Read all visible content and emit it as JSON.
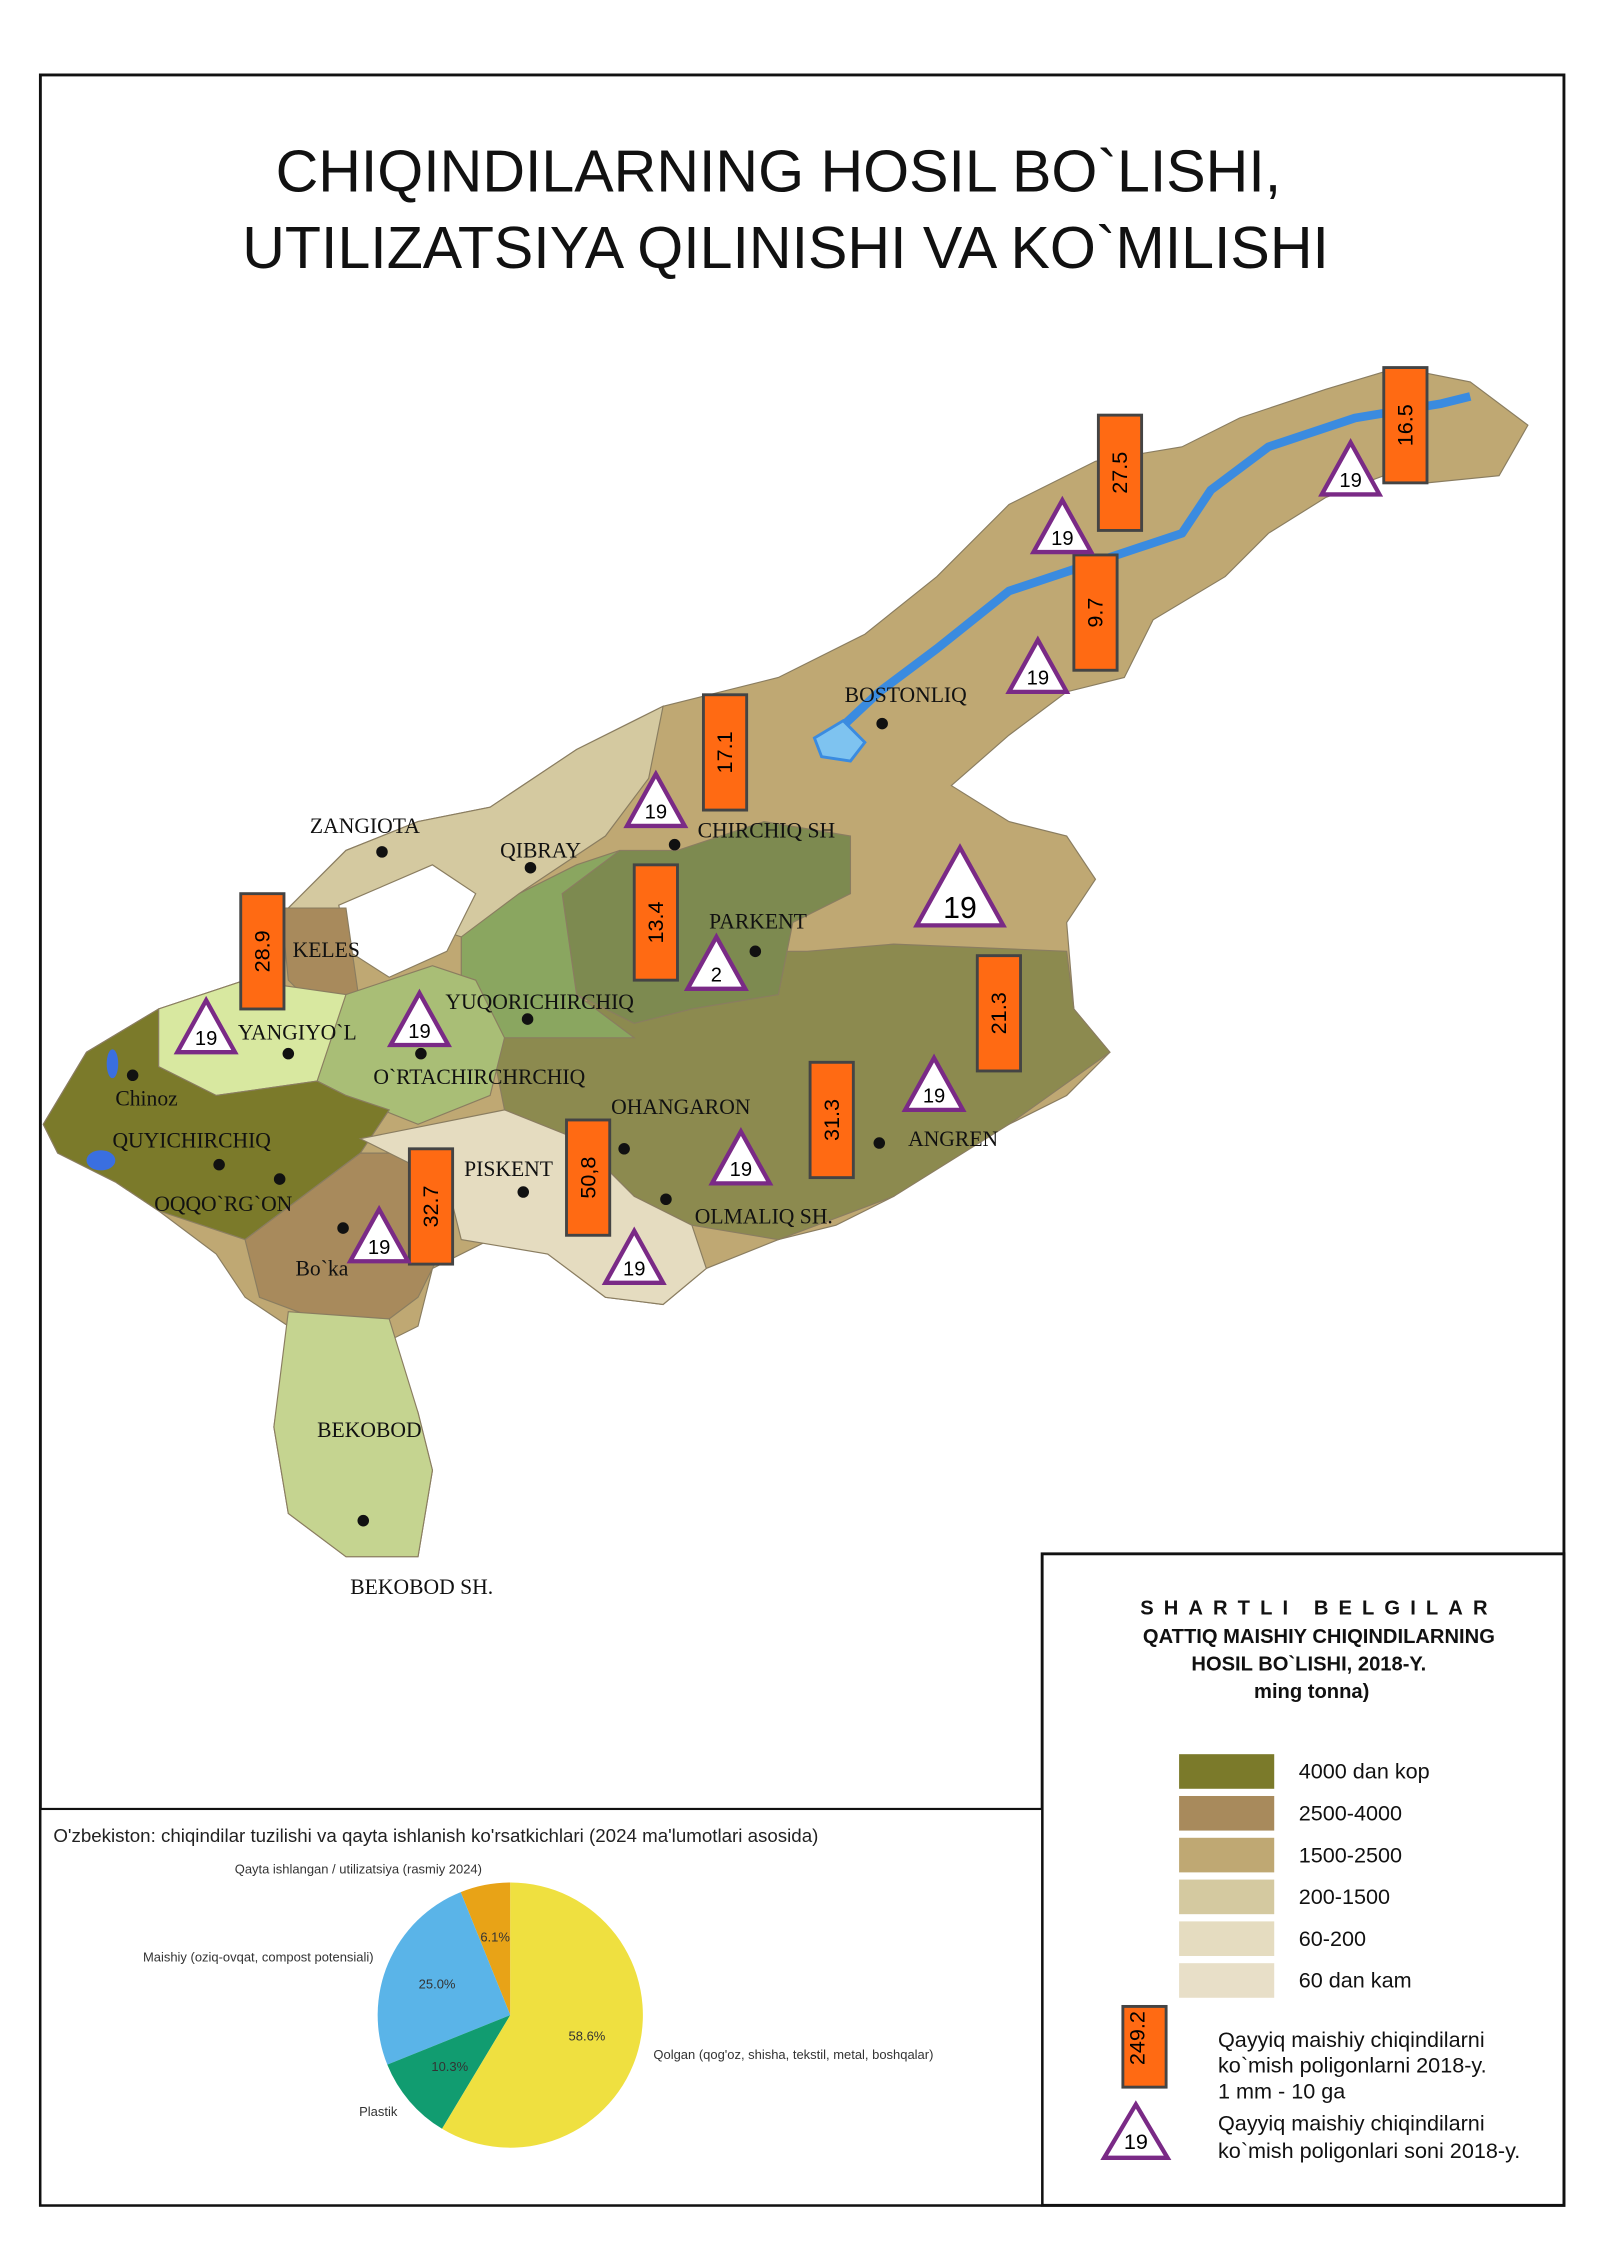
{
  "header": {
    "title_lines": [
      "CHIQINDILARNING HOSIL BO`LISHI,",
      "UTILIZATSIYA QILINISHI VA KO`MILISHI"
    ]
  },
  "map": {
    "places": [
      "ZANGIOTA",
      "QIBRAY",
      "CHIRCHIQ SH",
      "BOSTONLIQ",
      "PARKENT",
      "KELES",
      "YUQORICHIRCHIQ",
      "YANGIYO`L",
      "O`RTACHIRCHRCHIQ",
      "Chinoz",
      "QUYICHIRCHIQ",
      "OQQO`RG`ON",
      "Bo`ka",
      "PISKENT",
      "OHANGARON",
      "ANGREN",
      "OLMALIQ SH.",
      "BEKOBOD",
      "BEKOBOD SH."
    ],
    "boxes": [
      "16.5",
      "27.5",
      "9.7",
      "17.1",
      "13.4",
      "28.9",
      "21.3",
      "31.3",
      "50,8",
      "32.7"
    ],
    "triangles": [
      "19",
      "19",
      "19",
      "19",
      "19",
      "2",
      "19",
      "19",
      "19",
      "19",
      "19",
      "19"
    ]
  },
  "legend": {
    "title": "SHARTLI BELGILAR",
    "subtitle_lines": [
      "QATTIQ MAISHIY CHIQINDILARNING",
      "HOSIL BO`LISHI, 2018-Y.",
      "ming tonna)"
    ],
    "items": [
      {
        "label": "4000 dan kop",
        "color": "#7b7a2a"
      },
      {
        "label": "2500-4000",
        "color": "#a88a5c"
      },
      {
        "label": "1500-2500",
        "color": "#bfa873"
      },
      {
        "label": "200-1500",
        "color": "#d4c9a0"
      },
      {
        "label": "60-200",
        "color": "#e5dcc0"
      },
      {
        "label": "60 dan kam",
        "color": "#e8dfc8"
      }
    ],
    "box_sample": "249.2",
    "box_text_lines": [
      "Qayyiq maishiy chiqindilarni",
      "ko`mish poligonlarni 2018-y.",
      "1 mm - 10 ga"
    ],
    "triangle_sample": "19",
    "triangle_text_lines": [
      "Qayyiq maishiy chiqindilarni",
      "ko`mish poligonlari soni 2018-y."
    ]
  },
  "chart_data": {
    "type": "pie",
    "title": "O'zbekiston: chiqindilar tuzilishi va qayta ishlanish ko'rsatkichlari (2024 ma'lumotlari asosida)",
    "categories": [
      "Qayta ishlangan / utilizatsiya (rasmiy 2024)",
      "Maishiy (oziq-ovqat, compost potensiali)",
      "Plastik",
      "Qolgan (qog'oz, shisha, tekstil, metal, boshqalar)"
    ],
    "values": [
      6.1,
      25.0,
      10.3,
      58.6
    ],
    "value_labels": [
      "6.1%",
      "25.0%",
      "10.3%",
      "58.6%"
    ],
    "colors": [
      "#e8a317",
      "#5ab4e8",
      "#119c70",
      "#efe040"
    ]
  }
}
